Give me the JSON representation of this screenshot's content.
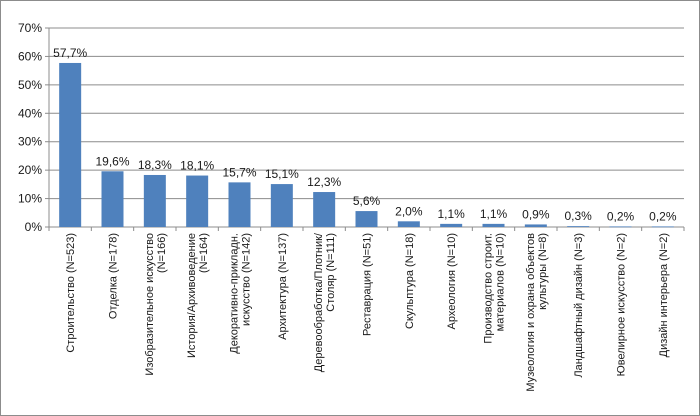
{
  "chart_data": {
    "type": "bar",
    "title": "",
    "xlabel": "",
    "ylabel": "",
    "ylim": [
      0,
      70
    ],
    "y_ticks": [
      "0%",
      "10%",
      "20%",
      "30%",
      "40%",
      "50%",
      "60%",
      "70%"
    ],
    "grid": "horizontal",
    "legend": "none",
    "bar_color": "#4f81bd",
    "categories": [
      [
        "Строительство (N=523)"
      ],
      [
        "Отделка (N=178)"
      ],
      [
        "Изобразительное искусство",
        "(N=166)"
      ],
      [
        "История/Архивоведение",
        "(N=164)"
      ],
      [
        "Декоративно-прикладн.",
        "искусство (N=142)"
      ],
      [
        "Архитектура (N=137)"
      ],
      [
        "Деревообработка/Плотник/",
        "Столяр (N=111)"
      ],
      [
        "Реставрация (N=51)"
      ],
      [
        "Скульптура (N=18)"
      ],
      [
        "Археология (N=10)"
      ],
      [
        "Производство строит.",
        "материалов (N=10)"
      ],
      [
        "Музеология и охрана объектов",
        "культуры (N=8)"
      ],
      [
        "Ландшафтный дизайн (N=3)"
      ],
      [
        "Ювелирное искусство (N=2)"
      ],
      [
        "Дизайн интерьера (N=2)"
      ]
    ],
    "values": [
      57.7,
      19.6,
      18.3,
      18.1,
      15.7,
      15.1,
      12.3,
      5.6,
      2.0,
      1.1,
      1.1,
      0.9,
      0.3,
      0.2,
      0.2
    ],
    "data_labels": [
      "57,7%",
      "19,6%",
      "18,3%",
      "18,1%",
      "15,7%",
      "15,1%",
      "12,3%",
      "5,6%",
      "2,0%",
      "1,1%",
      "1,1%",
      "0,9%",
      "0,3%",
      "0,2%",
      "0,2%"
    ]
  }
}
